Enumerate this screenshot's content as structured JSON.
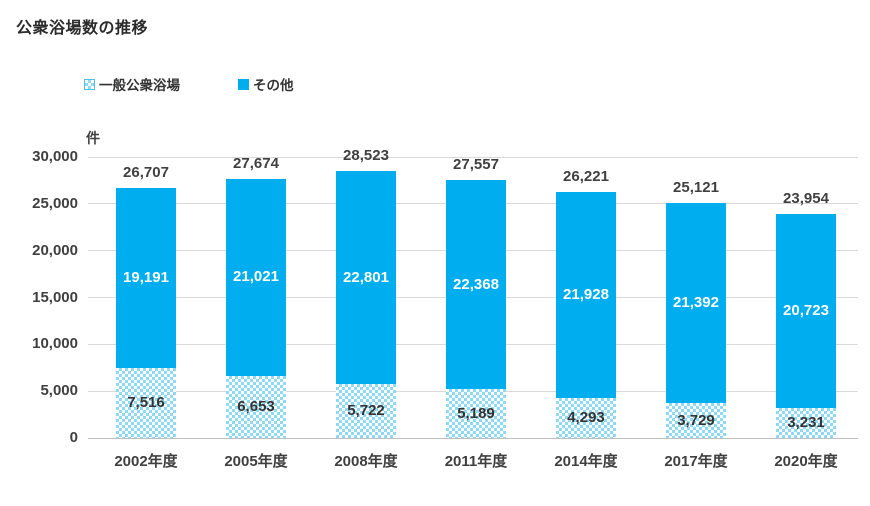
{
  "chart_data": {
    "type": "bar",
    "stacked": true,
    "title": "公衆浴場数の推移",
    "unit_label": "件",
    "categories": [
      "2002年度",
      "2005年度",
      "2008年度",
      "2011年度",
      "2014年度",
      "2017年度",
      "2020年度"
    ],
    "series": [
      {
        "name": "一般公衆浴場",
        "style": "pattern",
        "values": [
          7516,
          6653,
          5722,
          5189,
          4293,
          3729,
          3231
        ]
      },
      {
        "name": "その他",
        "style": "solid",
        "values": [
          19191,
          21021,
          22801,
          22368,
          21928,
          21392,
          20723
        ]
      }
    ],
    "totals": [
      26707,
      27674,
      28523,
      27557,
      26221,
      25121,
      23954
    ],
    "ylim": [
      0,
      30000
    ],
    "ytick_step": 5000,
    "yticks": [
      0,
      5000,
      10000,
      15000,
      20000,
      25000,
      30000
    ],
    "grid": true,
    "legend_position": "top-left",
    "colors": {
      "solid_blue": "#00AEEF",
      "pattern_blue": "#8ED9F3",
      "label_dark": "#404040",
      "label_white": "#FFFFFF",
      "gridline": "#D9D9D9",
      "axis_line": "#BFBFBF"
    }
  }
}
